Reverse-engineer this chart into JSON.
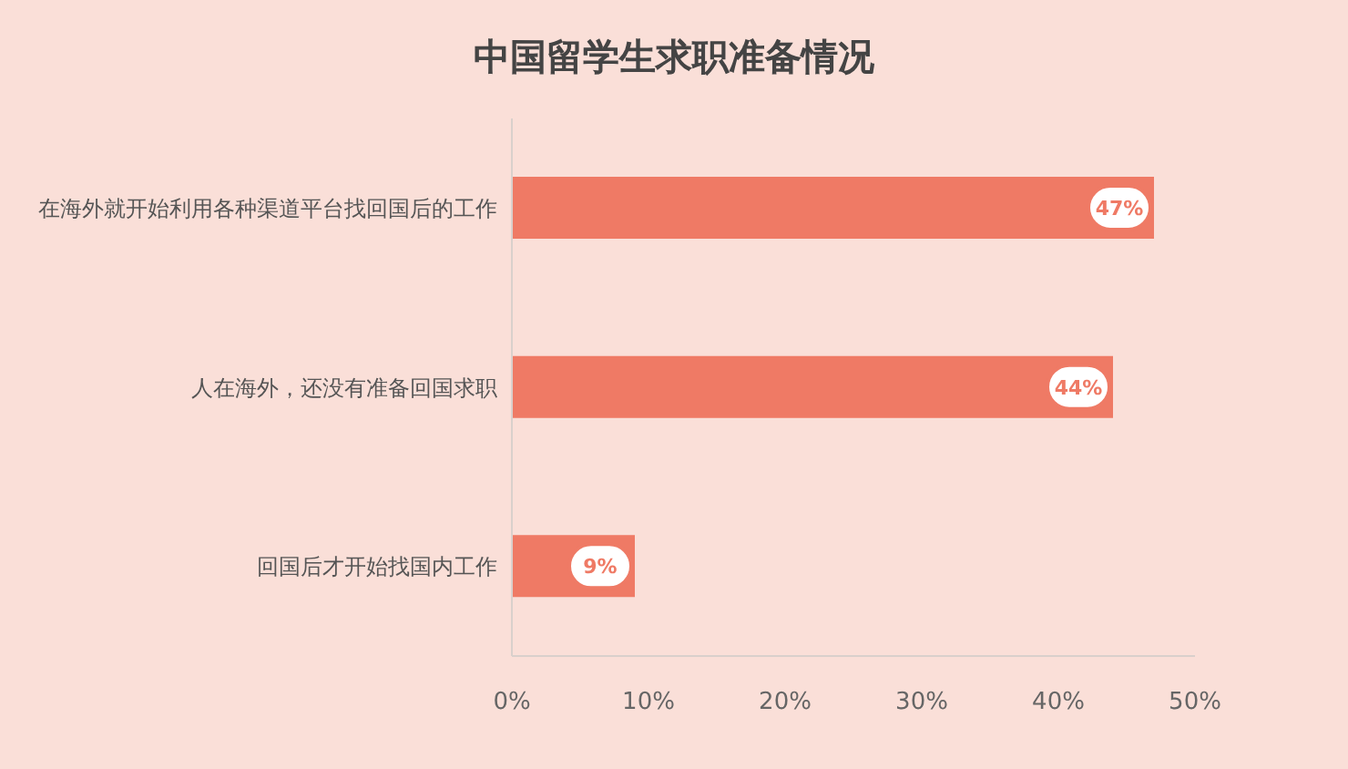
{
  "chart_data": {
    "type": "bar",
    "orientation": "horizontal",
    "title": "中国留学生求职准备情况",
    "categories": [
      "在海外就开始利用各种渠道平台找回国后的工作",
      "人在海外，还没有准备回国求职",
      "回国后才开始找国内工作"
    ],
    "values": [
      47,
      44,
      9
    ],
    "value_labels": [
      "47%",
      "44%",
      "9%"
    ],
    "color": "#ef7a65",
    "xlim": [
      0,
      50
    ],
    "xticks": [
      {
        "value": 0,
        "label": "0%"
      },
      {
        "value": 10,
        "label": "10%"
      },
      {
        "value": 20,
        "label": "20%"
      },
      {
        "value": 30,
        "label": "30%"
      },
      {
        "value": 40,
        "label": "40%"
      },
      {
        "value": 50,
        "label": "50%"
      }
    ],
    "grid": false
  }
}
